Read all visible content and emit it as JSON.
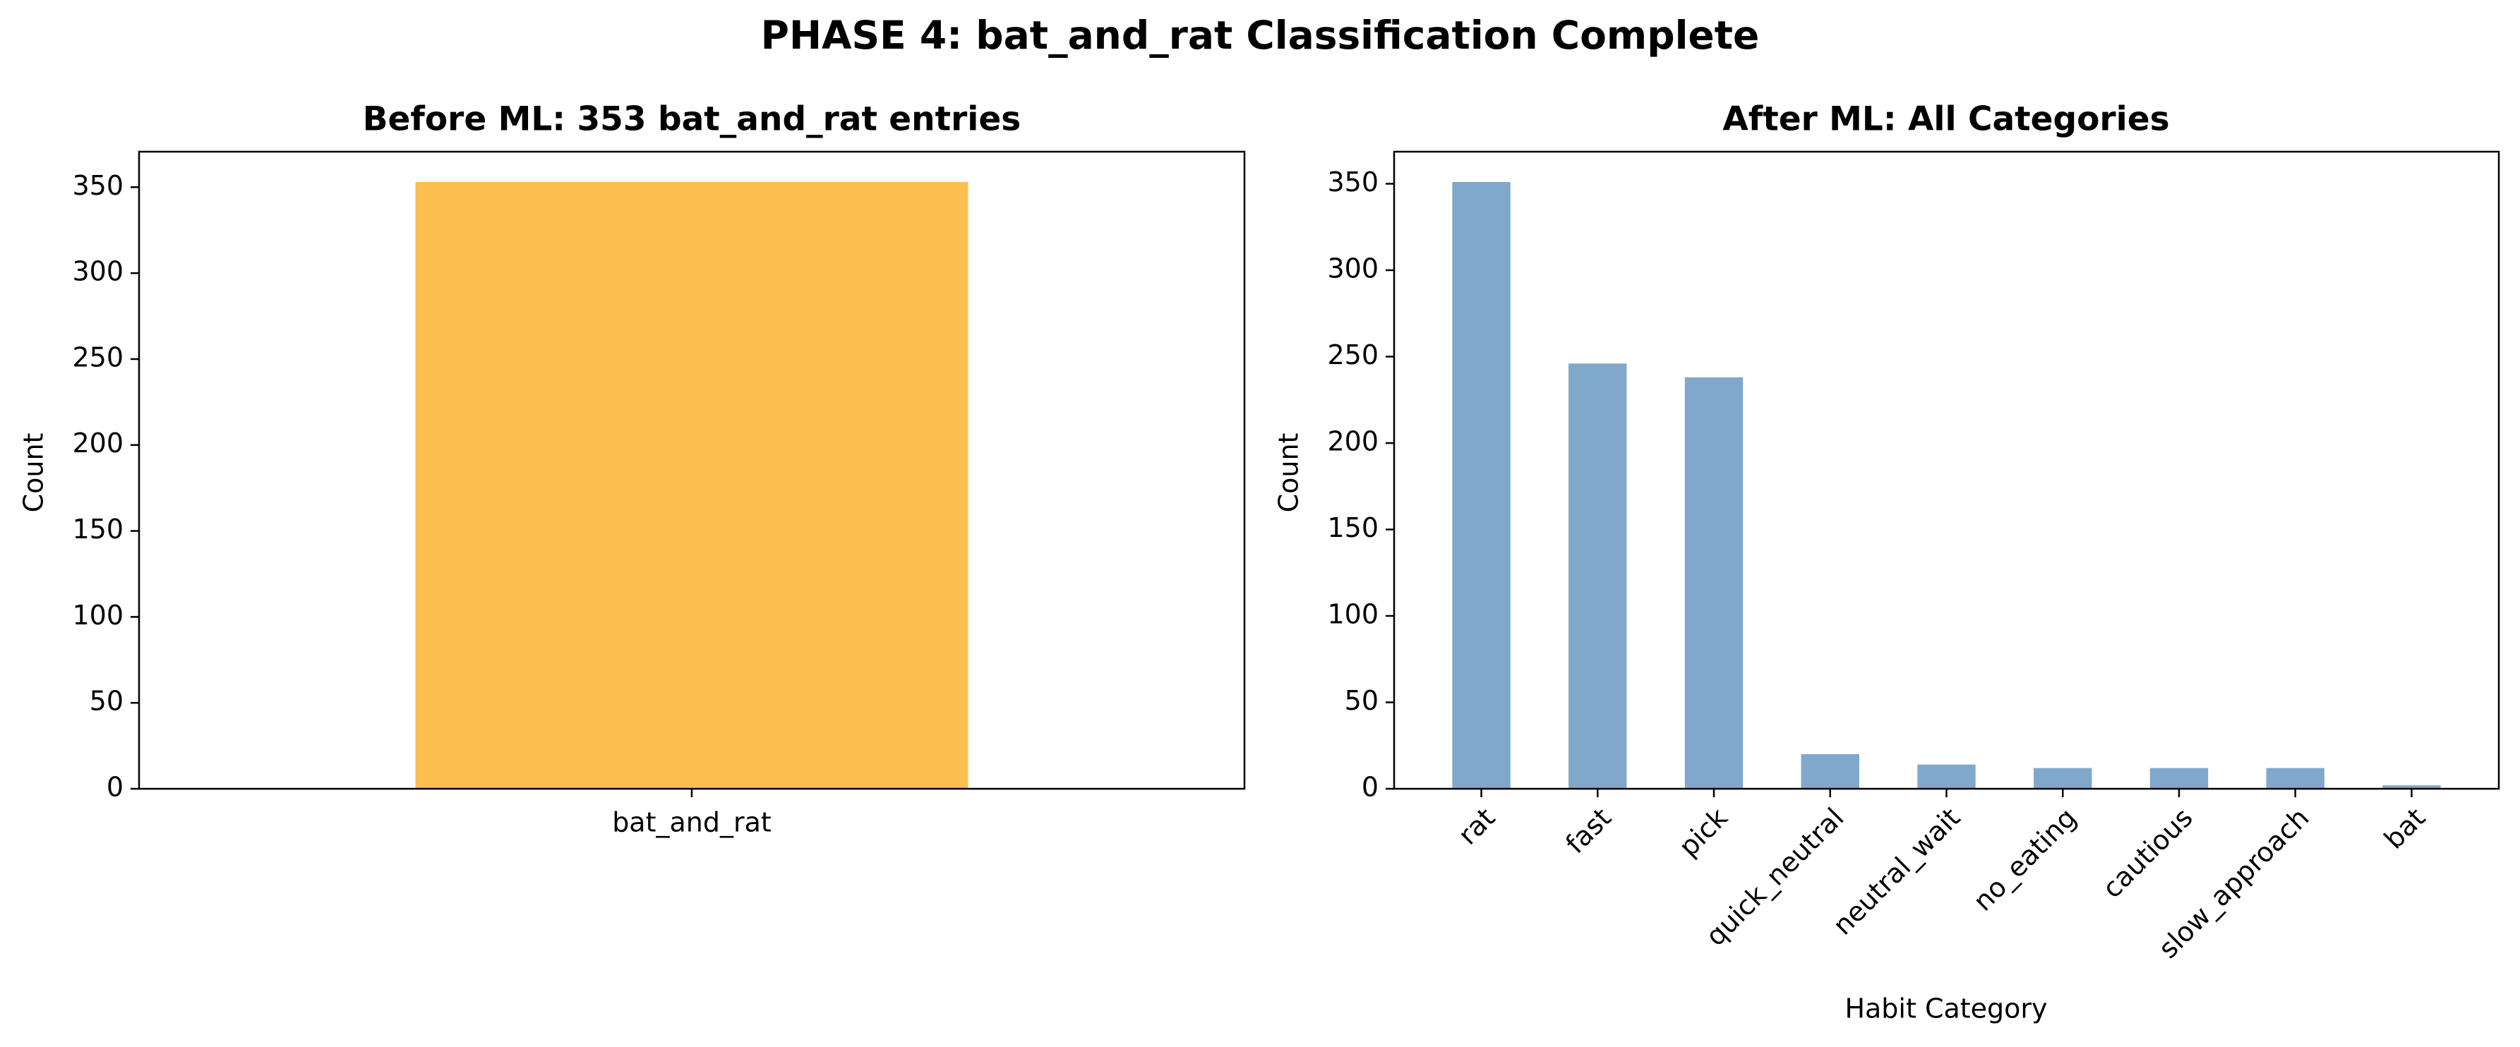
{
  "figure": {
    "suptitle": "PHASE 4: bat_and_rat Classification Complete"
  },
  "chart_data": [
    {
      "type": "bar",
      "title": "Before ML: 353 bat_and_rat entries",
      "xlabel": "",
      "ylabel": "Count",
      "categories": [
        "bat_and_rat"
      ],
      "values": [
        353
      ],
      "ylim": [
        0,
        370.65
      ],
      "yticks": [
        0,
        50,
        100,
        150,
        200,
        250,
        300,
        350
      ],
      "grid": false,
      "bar_color": "#FDBF4F"
    },
    {
      "type": "bar",
      "title": "After ML: All Categories",
      "xlabel": "Habit Category",
      "ylabel": "Count",
      "categories": [
        "rat",
        "fast",
        "pick",
        "quick_neutral",
        "neutral_wait",
        "no_eating",
        "cautious",
        "slow_approach",
        "bat"
      ],
      "values": [
        351,
        246,
        238,
        20,
        14,
        12,
        12,
        12,
        2
      ],
      "ylim": [
        0,
        368.55
      ],
      "yticks": [
        0,
        50,
        100,
        150,
        200,
        250,
        300,
        350
      ],
      "xtick_rotation": 45,
      "grid": false,
      "bar_color": "#7FA8CB"
    }
  ]
}
